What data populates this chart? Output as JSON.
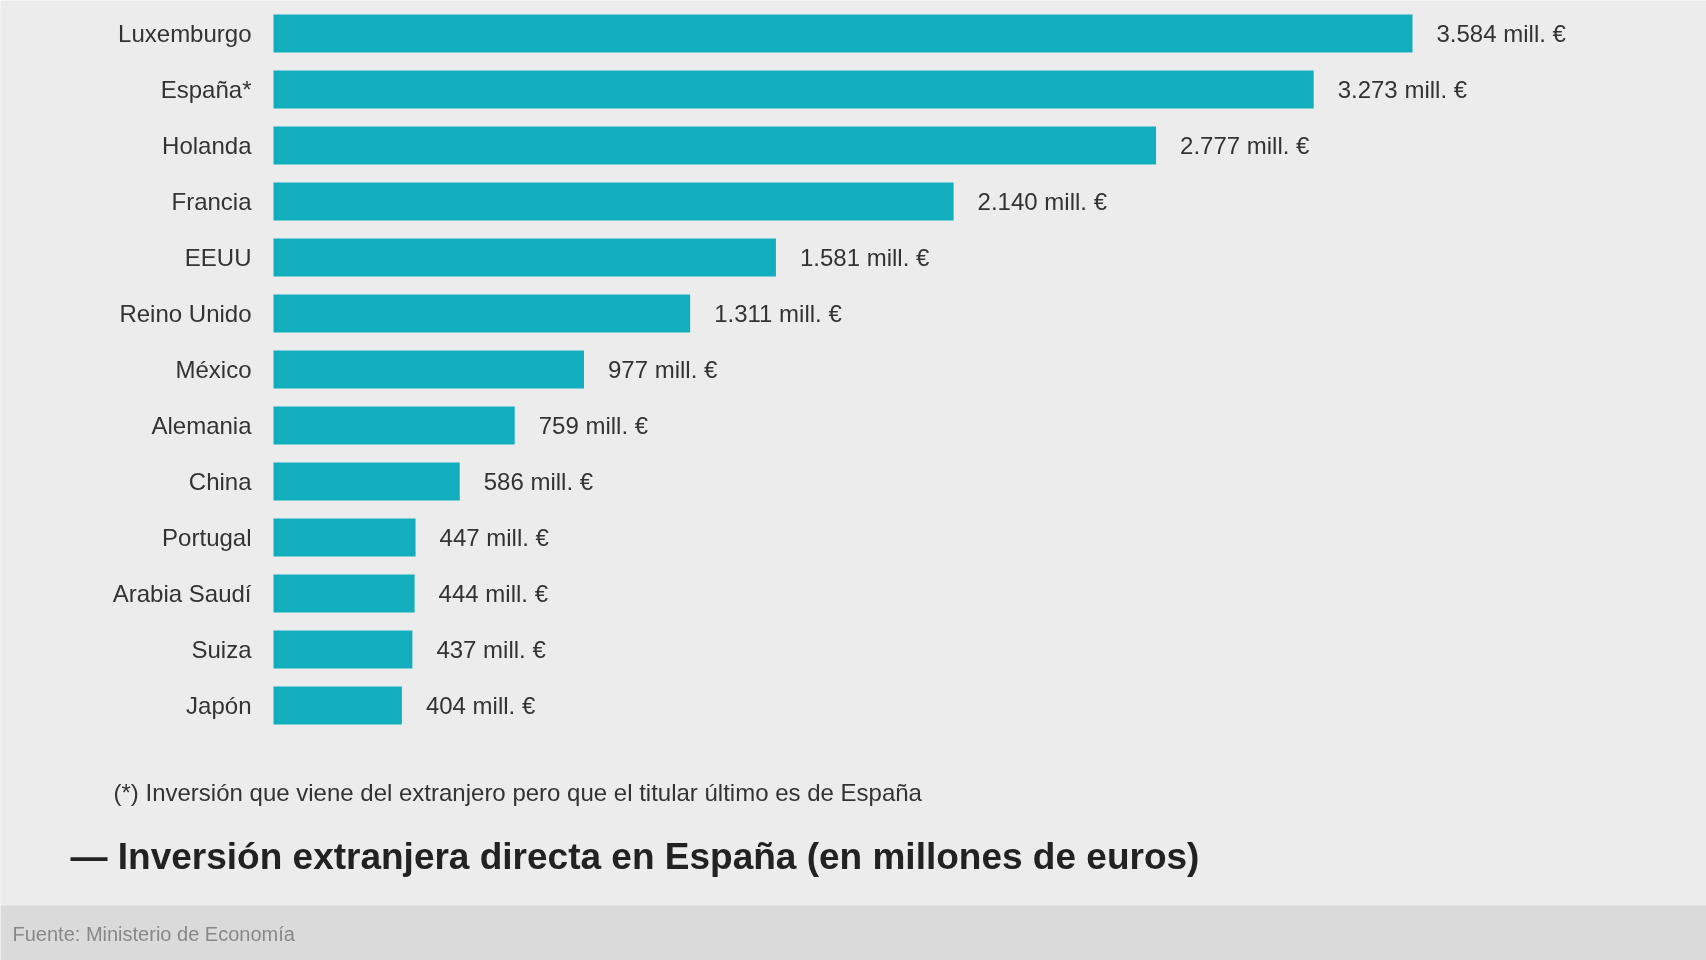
{
  "chart_data": {
    "type": "bar",
    "orientation": "horizontal",
    "title": "— Inversión extranjera directa en España (en millones de euros)",
    "categories": [
      "Luxemburgo",
      "España*",
      "Holanda",
      "Francia",
      "EEUU",
      "Reino Unido",
      "México",
      "Alemania",
      "China",
      "Portugal",
      "Arabia Saudí",
      "Suiza",
      "Japón"
    ],
    "values": [
      3584,
      3273,
      2777,
      2140,
      1581,
      1311,
      977,
      759,
      586,
      447,
      444,
      437,
      404
    ],
    "value_labels": [
      "3.584 mill. €",
      "3.273 mill. €",
      "2.777 mill. €",
      "2.140 mill. €",
      "1.581 mill. €",
      "1.311 mill. €",
      "977 mill. €",
      "759 mill. €",
      "586 mill. €",
      "447 mill. €",
      "444 mill. €",
      "437 mill. €",
      "404 mill. €"
    ],
    "color": "#12aebe",
    "annotations": [
      "(*) Inversión que viene del extranjero pero que el titular último es de España",
      "Fuente: Ministerio de Economía"
    ],
    "grid": false
  }
}
